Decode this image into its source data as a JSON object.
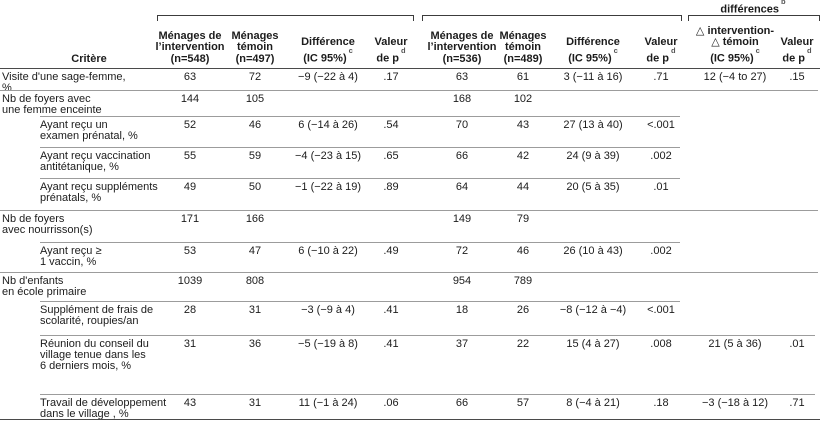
{
  "caption": {
    "text": "différences",
    "sup": "b"
  },
  "header": {
    "criterion_label": "Critère",
    "columns": [
      {
        "name": "menages-intervention-1",
        "lines": [
          "Ménages de",
          "l’intervention",
          "(n=548)"
        ],
        "sup": ""
      },
      {
        "name": "menages-temoin-1",
        "lines": [
          "Ménages",
          "témoin",
          "(n=497)"
        ],
        "sup": ""
      },
      {
        "name": "difference-1",
        "lines": [
          "Différence",
          "(IC 95%)"
        ],
        "sup": "c"
      },
      {
        "name": "valeur-p-1",
        "lines": [
          "Valeur",
          "de p"
        ],
        "sup": "d"
      },
      {
        "name": "menages-intervention-2",
        "lines": [
          "Ménages de",
          "l’intervention",
          "(n=536)"
        ],
        "sup": ""
      },
      {
        "name": "menages-temoin-2",
        "lines": [
          "Ménages",
          "témoin",
          "(n=489)"
        ],
        "sup": ""
      },
      {
        "name": "difference-2",
        "lines": [
          "Différence",
          "(IC 95%)"
        ],
        "sup": "c"
      },
      {
        "name": "valeur-p-2",
        "lines": [
          "Valeur",
          "de p"
        ],
        "sup": "d"
      },
      {
        "name": "delta-intervention-temoin",
        "lines": [
          "△ intervention-",
          "△ témoin",
          "(IC 95%)"
        ],
        "sup": "c"
      },
      {
        "name": "valeur-p-3",
        "lines": [
          "Valeur",
          "de p"
        ],
        "sup": "d"
      }
    ]
  },
  "rows": [
    {
      "label": "Visite d'une sage-femme, %",
      "indent": false,
      "cells": [
        "63",
        "72",
        "−9 (−22 à 4)",
        ".17",
        "63",
        "61",
        "3 (−11 à 16)",
        ".71",
        "12 (−4 to 27)",
        ".15"
      ]
    },
    {
      "label": "Nb de foyers avec\nune femme enceinte",
      "indent": false,
      "cells": [
        "144",
        "105",
        "",
        "",
        "168",
        "102",
        "",
        "",
        "",
        ""
      ]
    },
    {
      "label": "Ayant reçu un\nexamen prénatal, %",
      "indent": true,
      "cells": [
        "52",
        "46",
        "6 (−14 à 26)",
        ".54",
        "70",
        "43",
        "27 (13 à 40)",
        "<.001",
        "",
        ""
      ]
    },
    {
      "label": "Ayant reçu vaccination\nantitétanique, %",
      "indent": true,
      "cells": [
        "55",
        "59",
        "−4 (−23 à 15)",
        ".65",
        "66",
        "42",
        "24 (9 à 39)",
        ".002",
        "",
        ""
      ]
    },
    {
      "label": "Ayant reçu suppléments\nprénatals, %",
      "indent": true,
      "cells": [
        "49",
        "50",
        "−1 (−22 à 19)",
        ".89",
        "64",
        "44",
        "20 (5 à 35)",
        ".01",
        "",
        ""
      ]
    },
    {
      "label": "Nb de foyers\navec nourrisson(s)",
      "indent": false,
      "cells": [
        "171",
        "166",
        "",
        "",
        "149",
        "79",
        "",
        "",
        "",
        ""
      ]
    },
    {
      "label": "Ayant reçu ≥\n1 vaccin, %",
      "indent": true,
      "cells": [
        "53",
        "47",
        "6 (−10 à 22)",
        ".49",
        "72",
        "46",
        "26 (10 à 43)",
        ".002",
        "",
        ""
      ]
    },
    {
      "label": "Nb d'enfants\nen école primaire",
      "indent": false,
      "cells": [
        "1039",
        "808",
        "",
        "",
        "954",
        "789",
        "",
        "",
        "",
        ""
      ]
    },
    {
      "label": "Supplément de frais de\nscolarité, roupies/an",
      "indent": true,
      "cells": [
        "28",
        "31",
        "−3 (−9 à 4)",
        ".41",
        "18",
        "26",
        "−8 (−12 à −4)",
        "<.001",
        "",
        ""
      ]
    },
    {
      "label": "Réunion du conseil du\nvillage tenue dans les\n6 derniers mois, %",
      "indent": true,
      "cells": [
        "31",
        "36",
        "−5 (−19 à 8)",
        ".41",
        "37",
        "22",
        "15 (4 à 27)",
        ".008",
        "21 (5 à 36)",
        ".01"
      ]
    },
    {
      "label": "Travail de développement\ndans le village , %",
      "indent": true,
      "cells": [
        "43",
        "31",
        "11 (−1 à 24)",
        ".06",
        "66",
        "57",
        "8 (−4 à 21)",
        ".18",
        "−3 (−18 à 12)",
        ".71"
      ]
    }
  ]
}
